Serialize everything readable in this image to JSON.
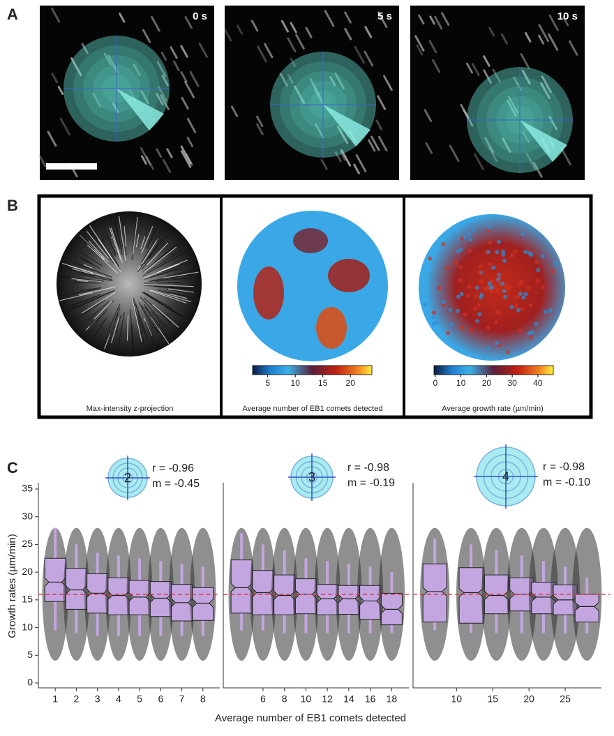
{
  "panel_a": {
    "label": "A",
    "timestamps": [
      "0 s",
      "5 s",
      "10 s"
    ]
  },
  "panel_b": {
    "label": "B",
    "captions": [
      "Max-intensity z-projection",
      "Average number of EB1 comets detected",
      "Average growth rate (µm/min)"
    ],
    "colorbars": [
      {
        "lim": [
          2.25,
          23.9
        ],
        "ticks": [
          5,
          10,
          15,
          20
        ]
      },
      {
        "lim": [
          -0.5,
          46
        ],
        "ticks": [
          0,
          10,
          20,
          30,
          40
        ]
      }
    ]
  },
  "panel_c": {
    "label": "C",
    "y_label": "Growth rates (µm/min)",
    "x_label": "Average number of EB1 comets detected"
  },
  "chart_data": [
    {
      "type": "box",
      "icon": "2",
      "annotations": [
        "r = -0.96",
        "m = -0.45"
      ],
      "x": [
        1,
        2,
        3,
        4,
        5,
        6,
        7,
        8
      ],
      "xlim": [
        0.2,
        8.8
      ],
      "xticks": [
        1,
        2,
        3,
        4,
        5,
        6,
        7,
        8
      ],
      "ylim": [
        -0.5,
        35.5
      ],
      "yticks": [
        0,
        5,
        10,
        15,
        20,
        25,
        30,
        35
      ],
      "color": "#c3a6e0",
      "reference_line": 16,
      "reference_color": "#e03030",
      "low": [
        9.5,
        9,
        8.5,
        8.5,
        8.5,
        8.5,
        8.5,
        8.5
      ],
      "q1": [
        14.7,
        13.3,
        12.6,
        12.3,
        12.3,
        12,
        11.2,
        11.3
      ],
      "median": [
        18.2,
        16.8,
        16.2,
        15.8,
        15.5,
        15.3,
        14.5,
        14.4
      ],
      "q3": [
        22.5,
        20.7,
        19.7,
        19,
        18.5,
        18.3,
        17.8,
        17.2
      ],
      "high": [
        28,
        25,
        23.5,
        23,
        22.5,
        22,
        21.5,
        21
      ]
    },
    {
      "type": "box",
      "icon": "3",
      "annotations": [
        "r = -0.98",
        "m = -0.19"
      ],
      "x": [
        4,
        6,
        8,
        10,
        12,
        14,
        16,
        18
      ],
      "xlim": [
        2.3,
        19.6
      ],
      "xticks": [
        6,
        8,
        10,
        12,
        14,
        16,
        18
      ],
      "ylim": [
        -0.5,
        35.5
      ],
      "color": "#c3a6e0",
      "reference_line": 16,
      "reference_color": "#e03030",
      "low": [
        9.5,
        9.5,
        9,
        9,
        9,
        9,
        9,
        9
      ],
      "q1": [
        12.6,
        12.3,
        12.3,
        12.5,
        12.3,
        12.4,
        11.5,
        10.5
      ],
      "median": [
        17.2,
        16.3,
        15.8,
        16,
        15.2,
        15.2,
        14.8,
        13.3
      ],
      "q3": [
        22.2,
        20.3,
        19.5,
        18.8,
        17.8,
        17.6,
        17.6,
        16.2
      ],
      "high": [
        27,
        25,
        24,
        22.5,
        22,
        21.5,
        21,
        20
      ]
    },
    {
      "type": "box",
      "icon": "4",
      "annotations": [
        "r = -0.98",
        "m = -0.10"
      ],
      "x": [
        7,
        12,
        15.5,
        19,
        22,
        25,
        28
      ],
      "xlim": [
        4,
        30
      ],
      "xticks": [
        10,
        15,
        20,
        25
      ],
      "ylim": [
        -0.5,
        35.5
      ],
      "color": "#c3a6e0",
      "reference_line": 16,
      "reference_color": "#e03030",
      "low": [
        9.5,
        9,
        9,
        9,
        9,
        9,
        9
      ],
      "q1": [
        11,
        10.8,
        12.5,
        13,
        12.5,
        12.3,
        11
      ],
      "median": [
        16.5,
        16.3,
        15.8,
        16,
        15.5,
        15,
        13.8
      ],
      "q3": [
        21.5,
        20.8,
        19.5,
        19,
        18.2,
        17.7,
        16
      ],
      "high": [
        26,
        25,
        24,
        23,
        22,
        21,
        19
      ]
    }
  ]
}
